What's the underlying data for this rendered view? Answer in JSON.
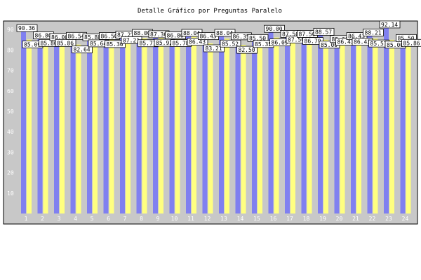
{
  "chart_data": {
    "type": "bar",
    "title": "Detalle Gráfico por Preguntas Paralelo",
    "xlabel": "",
    "ylabel": "",
    "ylim": [
      0,
      100
    ],
    "y_ticks": [
      10,
      20,
      30,
      40,
      50,
      60,
      70,
      80,
      90
    ],
    "grid": false,
    "legend": "none",
    "categories": [
      "1",
      "2",
      "3",
      "4",
      "5",
      "6",
      "7",
      "8",
      "9",
      "10",
      "11",
      "12",
      "13",
      "14",
      "15",
      "16",
      "17",
      "18",
      "19",
      "20",
      "21",
      "22",
      "23",
      "24"
    ],
    "series": [
      {
        "color": "#8080f0",
        "values": [
          90.36,
          86.8,
          86.0,
          86.54,
          85.88,
          86.5,
          87.21,
          88.0,
          87.36,
          86.8,
          88.04,
          86.43,
          88.04,
          86.35,
          85.5,
          90.0,
          87.5,
          87.5,
          88.57,
          85.0,
          86.43,
          88.21,
          92.14,
          85.5
        ]
      },
      {
        "color": "#ffff80",
        "values": [
          85.09,
          85.86,
          85.86,
          82.64,
          85.64,
          85.3,
          87.21,
          85.71,
          85.92,
          85.78,
          86.43,
          83.21,
          85.52,
          82.5,
          85.35,
          86.09,
          87.5,
          86.79,
          85.0,
          86.43,
          86.43,
          85.57,
          85.0,
          85.86
        ]
      }
    ]
  }
}
